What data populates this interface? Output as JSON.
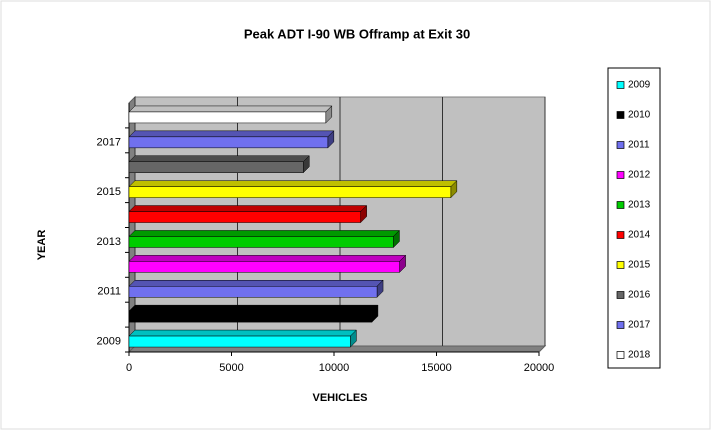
{
  "chart_data": {
    "type": "bar",
    "orientation": "horizontal",
    "title": "Peak ADT I-90 WB Offramp at Exit 30",
    "x_label": "VEHICLES",
    "y_label": "YEAR",
    "categories": [
      "2009",
      "2010",
      "2011",
      "2012",
      "2013",
      "2014",
      "2015",
      "2016",
      "2017",
      "2018"
    ],
    "values": [
      10800,
      11850,
      12100,
      13200,
      12900,
      11300,
      15700,
      8500,
      9700,
      9600
    ],
    "colors": [
      "#00ffff",
      "#000000",
      "#7070ee",
      "#ff00ff",
      "#00cc00",
      "#ff0000",
      "#ffff00",
      "#666666",
      "#7070ee",
      "#ffffff"
    ],
    "xlim": [
      0,
      20000
    ],
    "xticks": [
      0,
      5000,
      10000,
      15000,
      20000
    ],
    "grid": true,
    "legend": "right"
  }
}
